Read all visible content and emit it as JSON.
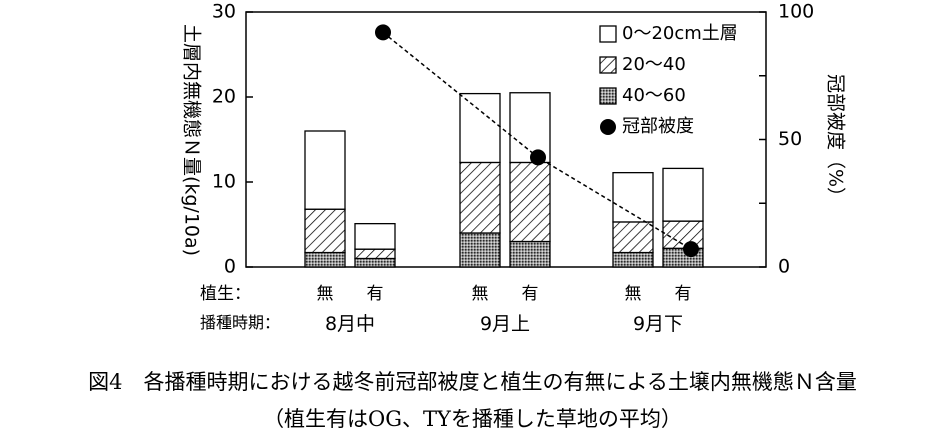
{
  "chart_data": {
    "type": "bar",
    "stacked": true,
    "categories": [
      {
        "vegetation": "無",
        "period": "8月中"
      },
      {
        "vegetation": "有",
        "period": "8月中"
      },
      {
        "vegetation": "無",
        "period": "9月上"
      },
      {
        "vegetation": "有",
        "period": "9月上"
      },
      {
        "vegetation": "無",
        "period": "9月下"
      },
      {
        "vegetation": "有",
        "period": "9月下"
      }
    ],
    "groups": [
      "8月中",
      "9月上",
      "9月下"
    ],
    "series": [
      {
        "name": "40～60",
        "pattern": "dots",
        "values": [
          1.7,
          1.0,
          4.0,
          3.0,
          1.7,
          2.2
        ]
      },
      {
        "name": "20～40",
        "pattern": "hatch",
        "values": [
          5.1,
          1.1,
          8.3,
          9.3,
          3.6,
          3.2
        ]
      },
      {
        "name": "0～20cm土層",
        "pattern": "white",
        "values": [
          9.2,
          3.0,
          8.1,
          8.2,
          5.8,
          6.2
        ]
      }
    ],
    "cover": {
      "name": "冠部被度",
      "values": [
        92,
        43,
        7
      ],
      "style": "dashed-line-with-black-dots"
    },
    "ylabel": "土層内無機態Ｎ量(kg/10a)",
    "y2label": "冠部被度（%）",
    "ylim": [
      0,
      30
    ],
    "y2lim": [
      0,
      100
    ],
    "yticks": [
      0,
      10,
      20,
      30
    ],
    "y2ticks": [
      0,
      50,
      100
    ],
    "row_label_vegetation": "植生：",
    "row_label_period": "播種時期：",
    "legend_placement": "top-right",
    "grid": false
  },
  "caption": {
    "line1": "図4　各播種時期における越冬前冠部被度と植生の有無による土壌内無機態Ｎ含量",
    "line2": "（植生有はOG、TYを播種した草地の平均）"
  }
}
